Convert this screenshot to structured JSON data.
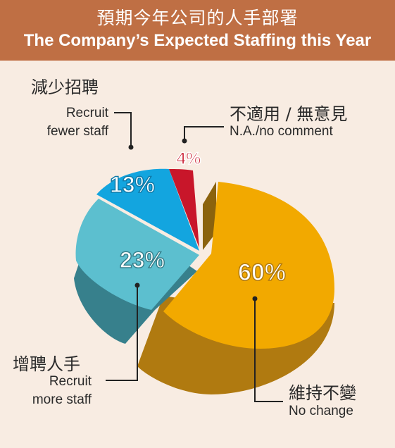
{
  "header": {
    "title_zh": "預期今年公司的人手部署",
    "title_en": "The Company’s Expected Staffing this Year"
  },
  "chart_data": {
    "type": "pie",
    "title": "預期今年公司的人手部署 The Company’s Expected Staffing this Year",
    "slices": [
      {
        "label_zh": "維持不變",
        "label_en": "No change",
        "value": 60,
        "display": "60%",
        "color": "#f2a900",
        "side_color": "#b07a10"
      },
      {
        "label_zh": "增聘人手",
        "label_en_lines": [
          "Recruit",
          "more staff"
        ],
        "value": 23,
        "display": "23%",
        "color": "#5cbfcf",
        "side_color": "#37808c"
      },
      {
        "label_zh": "減少招聘",
        "label_en_lines": [
          "Recruit",
          "fewer staff"
        ],
        "value": 13,
        "display": "13%",
        "color": "#13a5df",
        "side_color": "#0f7aa8"
      },
      {
        "label_zh": "不適用 / 無意見",
        "label_en": "N.A./no comment",
        "value": 4,
        "display": "4%",
        "color": "#c8162a",
        "side_color": "#8e0f1e"
      }
    ]
  },
  "labels": {
    "no_change_zh": "維持不變",
    "no_change_en": "No change",
    "more_zh": "增聘人手",
    "more_en_1": "Recruit",
    "more_en_2": "more staff",
    "fewer_zh": "減少招聘",
    "fewer_en_1": "Recruit",
    "fewer_en_2": "fewer staff",
    "na_zh": "不適用 / 無意見",
    "na_en": "N.A./no comment"
  },
  "pct_labels": {
    "no_change": "60%",
    "more": "23%",
    "fewer": "13%",
    "na": "4%"
  }
}
